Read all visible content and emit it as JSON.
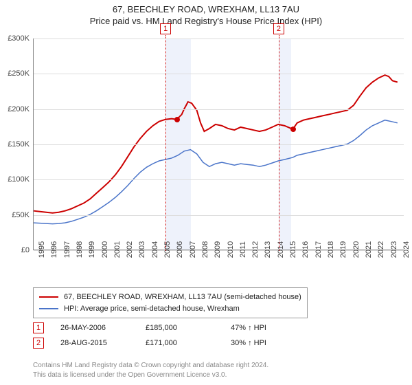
{
  "title_line1": "67, BEECHLEY ROAD, WREXHAM, LL13 7AU",
  "title_line2": "Price paid vs. HM Land Registry's House Price Index (HPI)",
  "chart": {
    "type": "line",
    "x_range": [
      1995,
      2024.5
    ],
    "y_range": [
      0,
      300000
    ],
    "y_ticks": [
      0,
      50000,
      100000,
      150000,
      200000,
      250000,
      300000
    ],
    "y_tick_labels": [
      "£0",
      "£50K",
      "£100K",
      "£150K",
      "£200K",
      "£250K",
      "£300K"
    ],
    "x_ticks": [
      1995,
      1996,
      1997,
      1998,
      1999,
      2000,
      2001,
      2002,
      2003,
      2004,
      2005,
      2006,
      2007,
      2008,
      2009,
      2010,
      2011,
      2012,
      2013,
      2014,
      2015,
      2016,
      2017,
      2018,
      2019,
      2020,
      2021,
      2022,
      2023,
      2024
    ],
    "background_color": "#ffffff",
    "grid_color": "#dddddd",
    "axis_color": "#888888",
    "tick_font_size": 11,
    "title_font_size": 13,
    "shaded_bands": [
      {
        "from": 2005.5,
        "to": 2007.5,
        "color": "#eef2fb"
      },
      {
        "from": 2014.5,
        "to": 2015.5,
        "color": "#eef2fb"
      }
    ],
    "series": [
      {
        "name": "property",
        "label": "67, BEECHLEY ROAD, WREXHAM, LL13 7AU (semi-detached house)",
        "color": "#cc0000",
        "line_width": 2,
        "points": [
          [
            1995,
            55000
          ],
          [
            1995.5,
            54000
          ],
          [
            1996,
            53000
          ],
          [
            1996.5,
            52000
          ],
          [
            1997,
            53000
          ],
          [
            1997.5,
            55000
          ],
          [
            1998,
            58000
          ],
          [
            1998.5,
            62000
          ],
          [
            1999,
            66000
          ],
          [
            1999.5,
            72000
          ],
          [
            2000,
            80000
          ],
          [
            2000.5,
            88000
          ],
          [
            2001,
            96000
          ],
          [
            2001.5,
            106000
          ],
          [
            2002,
            118000
          ],
          [
            2002.5,
            132000
          ],
          [
            2003,
            146000
          ],
          [
            2003.5,
            158000
          ],
          [
            2004,
            168000
          ],
          [
            2004.5,
            176000
          ],
          [
            2005,
            182000
          ],
          [
            2005.5,
            185000
          ],
          [
            2006,
            186000
          ],
          [
            2006.4,
            185000
          ],
          [
            2006.8,
            192000
          ],
          [
            2007,
            200000
          ],
          [
            2007.3,
            210000
          ],
          [
            2007.6,
            208000
          ],
          [
            2008,
            198000
          ],
          [
            2008.3,
            180000
          ],
          [
            2008.6,
            168000
          ],
          [
            2009,
            172000
          ],
          [
            2009.5,
            178000
          ],
          [
            2010,
            176000
          ],
          [
            2010.5,
            172000
          ],
          [
            2011,
            170000
          ],
          [
            2011.5,
            174000
          ],
          [
            2012,
            172000
          ],
          [
            2012.5,
            170000
          ],
          [
            2013,
            168000
          ],
          [
            2013.5,
            170000
          ],
          [
            2014,
            174000
          ],
          [
            2014.5,
            178000
          ],
          [
            2015,
            176000
          ],
          [
            2015.66,
            171000
          ],
          [
            2016,
            180000
          ],
          [
            2016.5,
            184000
          ],
          [
            2017,
            186000
          ],
          [
            2017.5,
            188000
          ],
          [
            2018,
            190000
          ],
          [
            2018.5,
            192000
          ],
          [
            2019,
            194000
          ],
          [
            2019.5,
            196000
          ],
          [
            2020,
            198000
          ],
          [
            2020.5,
            205000
          ],
          [
            2021,
            218000
          ],
          [
            2021.5,
            230000
          ],
          [
            2022,
            238000
          ],
          [
            2022.5,
            244000
          ],
          [
            2023,
            248000
          ],
          [
            2023.3,
            246000
          ],
          [
            2023.6,
            240000
          ],
          [
            2024,
            238000
          ]
        ]
      },
      {
        "name": "hpi",
        "label": "HPI: Average price, semi-detached house, Wrexham",
        "color": "#4a74c9",
        "line_width": 1.5,
        "points": [
          [
            1995,
            38000
          ],
          [
            1995.5,
            37500
          ],
          [
            1996,
            37000
          ],
          [
            1996.5,
            36500
          ],
          [
            1997,
            37000
          ],
          [
            1997.5,
            38000
          ],
          [
            1998,
            40000
          ],
          [
            1998.5,
            43000
          ],
          [
            1999,
            46000
          ],
          [
            1999.5,
            50000
          ],
          [
            2000,
            55000
          ],
          [
            2000.5,
            61000
          ],
          [
            2001,
            67000
          ],
          [
            2001.5,
            74000
          ],
          [
            2002,
            82000
          ],
          [
            2002.5,
            91000
          ],
          [
            2003,
            101000
          ],
          [
            2003.5,
            110000
          ],
          [
            2004,
            117000
          ],
          [
            2004.5,
            122000
          ],
          [
            2005,
            126000
          ],
          [
            2005.5,
            128000
          ],
          [
            2006,
            130000
          ],
          [
            2006.5,
            134000
          ],
          [
            2007,
            140000
          ],
          [
            2007.5,
            142000
          ],
          [
            2008,
            136000
          ],
          [
            2008.5,
            124000
          ],
          [
            2009,
            118000
          ],
          [
            2009.5,
            122000
          ],
          [
            2010,
            124000
          ],
          [
            2010.5,
            122000
          ],
          [
            2011,
            120000
          ],
          [
            2011.5,
            122000
          ],
          [
            2012,
            121000
          ],
          [
            2012.5,
            120000
          ],
          [
            2013,
            118000
          ],
          [
            2013.5,
            120000
          ],
          [
            2014,
            123000
          ],
          [
            2014.5,
            126000
          ],
          [
            2015,
            128000
          ],
          [
            2015.66,
            131000
          ],
          [
            2016,
            134000
          ],
          [
            2016.5,
            136000
          ],
          [
            2017,
            138000
          ],
          [
            2017.5,
            140000
          ],
          [
            2018,
            142000
          ],
          [
            2018.5,
            144000
          ],
          [
            2019,
            146000
          ],
          [
            2019.5,
            148000
          ],
          [
            2020,
            150000
          ],
          [
            2020.5,
            155000
          ],
          [
            2021,
            162000
          ],
          [
            2021.5,
            170000
          ],
          [
            2022,
            176000
          ],
          [
            2022.5,
            180000
          ],
          [
            2023,
            184000
          ],
          [
            2023.5,
            182000
          ],
          [
            2024,
            180000
          ]
        ]
      }
    ],
    "markers": [
      {
        "id": "1",
        "x": 2006.4,
        "y": 185000,
        "color": "#cc0000"
      },
      {
        "id": "2",
        "x": 2015.66,
        "y": 171000,
        "color": "#cc0000"
      }
    ],
    "flags": [
      {
        "id": "1",
        "x": 2005.5
      },
      {
        "id": "2",
        "x": 2014.5
      }
    ],
    "flag_color": "#cc0000"
  },
  "legend": {
    "items": [
      {
        "color": "#cc0000",
        "label": "67, BEECHLEY ROAD, WREXHAM, LL13 7AU (semi-detached house)"
      },
      {
        "color": "#4a74c9",
        "label": "HPI: Average price, semi-detached house, Wrexham"
      }
    ]
  },
  "transactions": [
    {
      "id": "1",
      "date": "26-MAY-2006",
      "price": "£185,000",
      "delta": "47%",
      "arrow": "↑",
      "suffix": "HPI"
    },
    {
      "id": "2",
      "date": "28-AUG-2015",
      "price": "£171,000",
      "delta": "30%",
      "arrow": "↑",
      "suffix": "HPI"
    }
  ],
  "footer_line1": "Contains HM Land Registry data © Crown copyright and database right 2024.",
  "footer_line2": "This data is licensed under the Open Government Licence v3.0."
}
